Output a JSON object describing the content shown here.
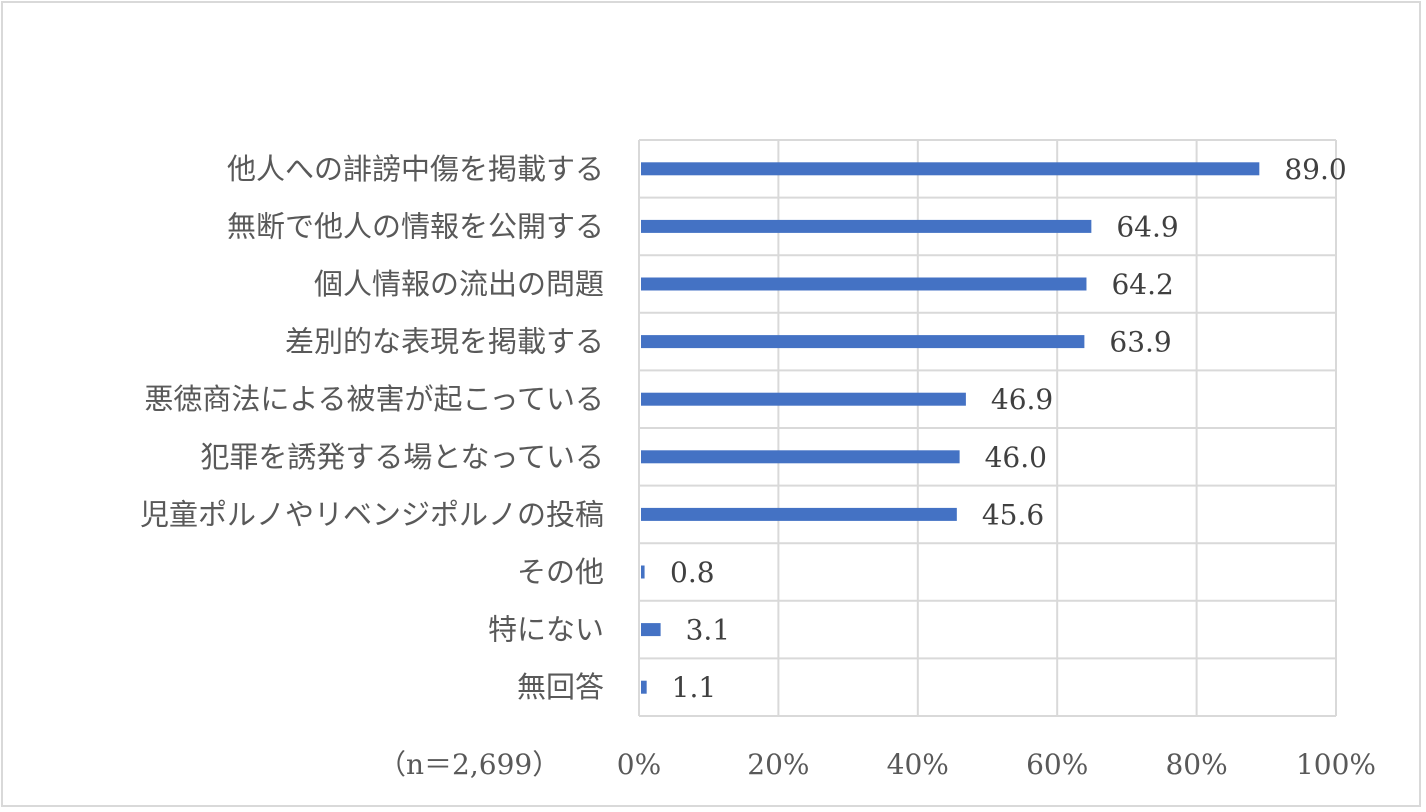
{
  "chart_data": {
    "type": "bar",
    "orientation": "horizontal",
    "categories": [
      "他人への誹謗中傷を掲載する",
      "無断で他人の情報を公開する",
      "個人情報の流出の問題",
      "差別的な表現を掲載する",
      "悪徳商法による被害が起こっている",
      "犯罪を誘発する場となっている",
      "児童ポルノやリベンジポルノの投稿",
      "その他",
      "特にない",
      "無回答"
    ],
    "values": [
      89.0,
      64.9,
      64.2,
      63.9,
      46.9,
      46.0,
      45.6,
      0.8,
      3.1,
      1.1
    ],
    "value_labels": [
      "89.0",
      "64.9",
      "64.2",
      "63.9",
      "46.9",
      "46.0",
      "45.6",
      "0.8",
      "3.1",
      "1.1"
    ],
    "xlim": [
      0,
      100
    ],
    "x_ticks": [
      "0%",
      "20%",
      "40%",
      "60%",
      "80%",
      "100%"
    ],
    "note": "（n＝2,699）",
    "bar_color": "#4472c4",
    "grid": true
  }
}
